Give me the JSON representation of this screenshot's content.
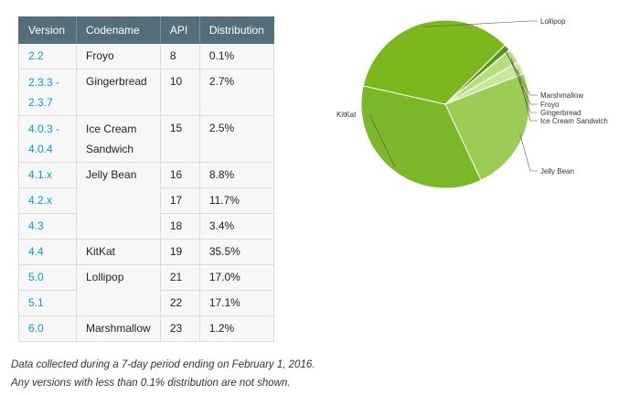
{
  "table": {
    "headers": [
      "Version",
      "Codename",
      "API",
      "Distribution"
    ],
    "rows": [
      {
        "version": "2.2",
        "codename": "Froyo",
        "api": "8",
        "dist": "0.1%"
      },
      {
        "version": "2.3.3 -\n2.3.7",
        "codename": "Gingerbread",
        "api": "10",
        "dist": "2.7%"
      },
      {
        "version": "4.0.3 -\n4.0.4",
        "codename": "Ice Cream\nSandwich",
        "api": "15",
        "dist": "2.5%"
      },
      {
        "version": "4.1.x",
        "codename": "Jelly Bean",
        "api": "16",
        "dist": "8.8%"
      },
      {
        "version": "4.2.x",
        "codename": "",
        "api": "17",
        "dist": "11.7%"
      },
      {
        "version": "4.3",
        "codename": "",
        "api": "18",
        "dist": "3.4%"
      },
      {
        "version": "4.4",
        "codename": "KitKat",
        "api": "19",
        "dist": "35.5%"
      },
      {
        "version": "5.0",
        "codename": "Lollipop",
        "api": "21",
        "dist": "17.0%"
      },
      {
        "version": "5.1",
        "codename": "",
        "api": "22",
        "dist": "17.1%"
      },
      {
        "version": "6.0",
        "codename": "Marshmallow",
        "api": "23",
        "dist": "1.2%"
      }
    ]
  },
  "notes": {
    "line1": "Data collected during a 7-day period ending on February 1, 2016.",
    "line2": "Any versions with less than 0.1% distribution are not shown."
  },
  "chart_data": {
    "type": "pie",
    "slices": [
      {
        "label": "Lollipop",
        "value": 34.1,
        "color": "#7cb71e"
      },
      {
        "label": "Marshmallow",
        "value": 1.2,
        "color": "#5b9614"
      },
      {
        "label": "Froyo",
        "value": 0.1,
        "color": "#8ec63f"
      },
      {
        "label": "Gingerbread",
        "value": 2.7,
        "color": "#b7dc7d"
      },
      {
        "label": "Ice Cream Sandwich",
        "value": 2.5,
        "color": "#c9e69b"
      },
      {
        "label": "Jelly Bean",
        "value": 23.9,
        "color": "#9ccc55"
      },
      {
        "label": "KitKat",
        "value": 35.5,
        "color": "#7ab829"
      }
    ]
  }
}
